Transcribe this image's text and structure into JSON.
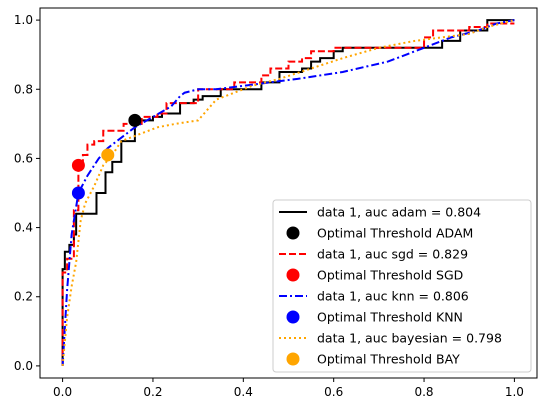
{
  "chart_data": {
    "type": "line",
    "title": "",
    "xlabel": "",
    "ylabel": "",
    "xlim": [
      -0.05,
      1.05
    ],
    "ylim": [
      -0.035,
      1.035
    ],
    "xticks": [
      "0.0",
      "0.2",
      "0.4",
      "0.6",
      "0.8",
      "1.0"
    ],
    "yticks": [
      "0.0",
      "0.2",
      "0.4",
      "0.6",
      "0.8",
      "1.0"
    ],
    "grid": false,
    "legend_position": "lower-right",
    "series": [
      {
        "name": "data 1, auc adam = 0.804",
        "color": "#000000",
        "style": "solid",
        "x": [
          0.0,
          0.0,
          0.005,
          0.005,
          0.015,
          0.015,
          0.025,
          0.025,
          0.03,
          0.03,
          0.075,
          0.075,
          0.095,
          0.095,
          0.11,
          0.11,
          0.13,
          0.13,
          0.16,
          0.16,
          0.2,
          0.2,
          0.22,
          0.22,
          0.26,
          0.26,
          0.29,
          0.29,
          0.31,
          0.31,
          0.35,
          0.35,
          0.44,
          0.44,
          0.48,
          0.48,
          0.53,
          0.53,
          0.55,
          0.55,
          0.57,
          0.57,
          0.6,
          0.6,
          0.62,
          0.62,
          0.84,
          0.84,
          0.88,
          0.88,
          0.94,
          0.94,
          1.0
        ],
        "y": [
          0.0,
          0.28,
          0.28,
          0.33,
          0.33,
          0.35,
          0.35,
          0.38,
          0.38,
          0.44,
          0.44,
          0.5,
          0.5,
          0.56,
          0.56,
          0.59,
          0.59,
          0.65,
          0.65,
          0.71,
          0.71,
          0.72,
          0.72,
          0.73,
          0.73,
          0.76,
          0.76,
          0.77,
          0.77,
          0.78,
          0.78,
          0.8,
          0.8,
          0.82,
          0.82,
          0.85,
          0.85,
          0.86,
          0.86,
          0.88,
          0.88,
          0.89,
          0.89,
          0.91,
          0.91,
          0.92,
          0.92,
          0.94,
          0.94,
          0.97,
          0.97,
          1.0,
          1.0
        ]
      },
      {
        "name": "data 1, auc sgd = 0.829",
        "color": "#ff0000",
        "style": "dashed",
        "x": [
          0.0,
          0.0,
          0.01,
          0.01,
          0.025,
          0.025,
          0.035,
          0.035,
          0.045,
          0.045,
          0.055,
          0.055,
          0.07,
          0.07,
          0.09,
          0.09,
          0.135,
          0.135,
          0.175,
          0.175,
          0.21,
          0.21,
          0.23,
          0.23,
          0.3,
          0.3,
          0.38,
          0.38,
          0.44,
          0.44,
          0.46,
          0.46,
          0.5,
          0.5,
          0.53,
          0.53,
          0.55,
          0.55,
          0.6,
          0.6,
          0.8,
          0.8,
          0.82,
          0.82,
          0.9,
          0.9,
          0.94,
          0.94,
          1.0
        ],
        "y": [
          0.0,
          0.27,
          0.27,
          0.31,
          0.31,
          0.45,
          0.45,
          0.58,
          0.58,
          0.61,
          0.61,
          0.64,
          0.64,
          0.65,
          0.65,
          0.68,
          0.68,
          0.7,
          0.7,
          0.72,
          0.72,
          0.73,
          0.73,
          0.76,
          0.76,
          0.8,
          0.8,
          0.82,
          0.82,
          0.84,
          0.84,
          0.86,
          0.86,
          0.88,
          0.88,
          0.89,
          0.89,
          0.91,
          0.91,
          0.92,
          0.92,
          0.95,
          0.95,
          0.97,
          0.97,
          0.98,
          0.98,
          0.99,
          0.99
        ]
      },
      {
        "name": "data 1, auc knn = 0.806",
        "color": "#0000ff",
        "style": "dashdot",
        "x": [
          0.0,
          0.01,
          0.02,
          0.035,
          0.055,
          0.08,
          0.1,
          0.13,
          0.16,
          0.2,
          0.24,
          0.26,
          0.27,
          0.3,
          0.34,
          0.4,
          0.46,
          0.52,
          0.62,
          0.72,
          0.8,
          0.86,
          0.92,
          0.96,
          1.0
        ],
        "y": [
          0.0,
          0.22,
          0.38,
          0.5,
          0.55,
          0.6,
          0.63,
          0.66,
          0.69,
          0.72,
          0.75,
          0.78,
          0.79,
          0.8,
          0.8,
          0.81,
          0.82,
          0.83,
          0.85,
          0.88,
          0.92,
          0.95,
          0.97,
          0.99,
          1.0
        ]
      },
      {
        "name": "data 1, auc bayesian = 0.798",
        "color": "#ffa500",
        "style": "dotted",
        "x": [
          0.0,
          0.01,
          0.02,
          0.03,
          0.04,
          0.05,
          0.07,
          0.09,
          0.11,
          0.13,
          0.17,
          0.21,
          0.25,
          0.3,
          0.34,
          0.38,
          0.42,
          0.48,
          0.55,
          0.62,
          0.7,
          0.78,
          0.84,
          0.9,
          0.94,
          1.0
        ],
        "y": [
          0.0,
          0.14,
          0.23,
          0.3,
          0.42,
          0.47,
          0.52,
          0.58,
          0.61,
          0.65,
          0.67,
          0.69,
          0.7,
          0.71,
          0.77,
          0.79,
          0.81,
          0.83,
          0.86,
          0.89,
          0.92,
          0.94,
          0.95,
          0.96,
          0.98,
          1.0
        ]
      }
    ],
    "points": [
      {
        "name": "Optimal Threshold ADAM",
        "color": "#000000",
        "x": 0.16,
        "y": 0.71
      },
      {
        "name": "Optimal Threshold SGD",
        "color": "#ff0000",
        "x": 0.035,
        "y": 0.58
      },
      {
        "name": "Optimal Threshold KNN",
        "color": "#0000ff",
        "x": 0.035,
        "y": 0.5
      },
      {
        "name": "Optimal Threshold BAY",
        "color": "#ffa500",
        "x": 0.1,
        "y": 0.61
      }
    ],
    "legend": [
      {
        "label": "data 1, auc adam = 0.804",
        "kind": "line",
        "color": "#000000",
        "style": "solid"
      },
      {
        "label": "Optimal Threshold ADAM",
        "kind": "marker",
        "color": "#000000"
      },
      {
        "label": "data 1, auc sgd = 0.829",
        "kind": "line",
        "color": "#ff0000",
        "style": "dashed"
      },
      {
        "label": "Optimal Threshold SGD",
        "kind": "marker",
        "color": "#ff0000"
      },
      {
        "label": "data 1, auc knn = 0.806",
        "kind": "line",
        "color": "#0000ff",
        "style": "dashdot"
      },
      {
        "label": "Optimal Threshold KNN",
        "kind": "marker",
        "color": "#0000ff"
      },
      {
        "label": "data 1, auc bayesian = 0.798",
        "kind": "line",
        "color": "#ffa500",
        "style": "dotted"
      },
      {
        "label": "Optimal Threshold BAY",
        "kind": "marker",
        "color": "#ffa500"
      }
    ]
  }
}
